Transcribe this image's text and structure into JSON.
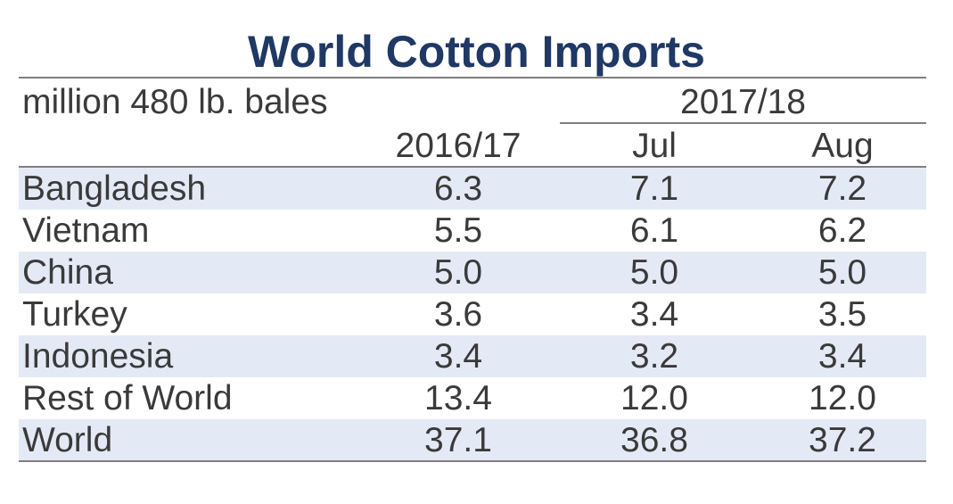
{
  "chart_data": {
    "type": "table",
    "title": "World Cotton Imports",
    "unit_label": "million 480 lb. bales",
    "group_header": "2017/18",
    "columns": [
      "2016/17",
      "Jul",
      "Aug"
    ],
    "rows": [
      {
        "country": "Bangladesh",
        "values": [
          "6.3",
          "7.1",
          "7.2"
        ]
      },
      {
        "country": "Vietnam",
        "values": [
          "5.5",
          "6.1",
          "6.2"
        ]
      },
      {
        "country": "China",
        "values": [
          "5.0",
          "5.0",
          "5.0"
        ]
      },
      {
        "country": "Turkey",
        "values": [
          "3.6",
          "3.4",
          "3.5"
        ]
      },
      {
        "country": "Indonesia",
        "values": [
          "3.4",
          "3.2",
          "3.4"
        ]
      },
      {
        "country": "Rest of World",
        "values": [
          "13.4",
          "12.0",
          "12.0"
        ]
      },
      {
        "country": "World",
        "values": [
          "37.1",
          "36.8",
          "37.2"
        ]
      }
    ],
    "row_shade_color": "#e4eaf5",
    "title_color": "#1f3864"
  }
}
